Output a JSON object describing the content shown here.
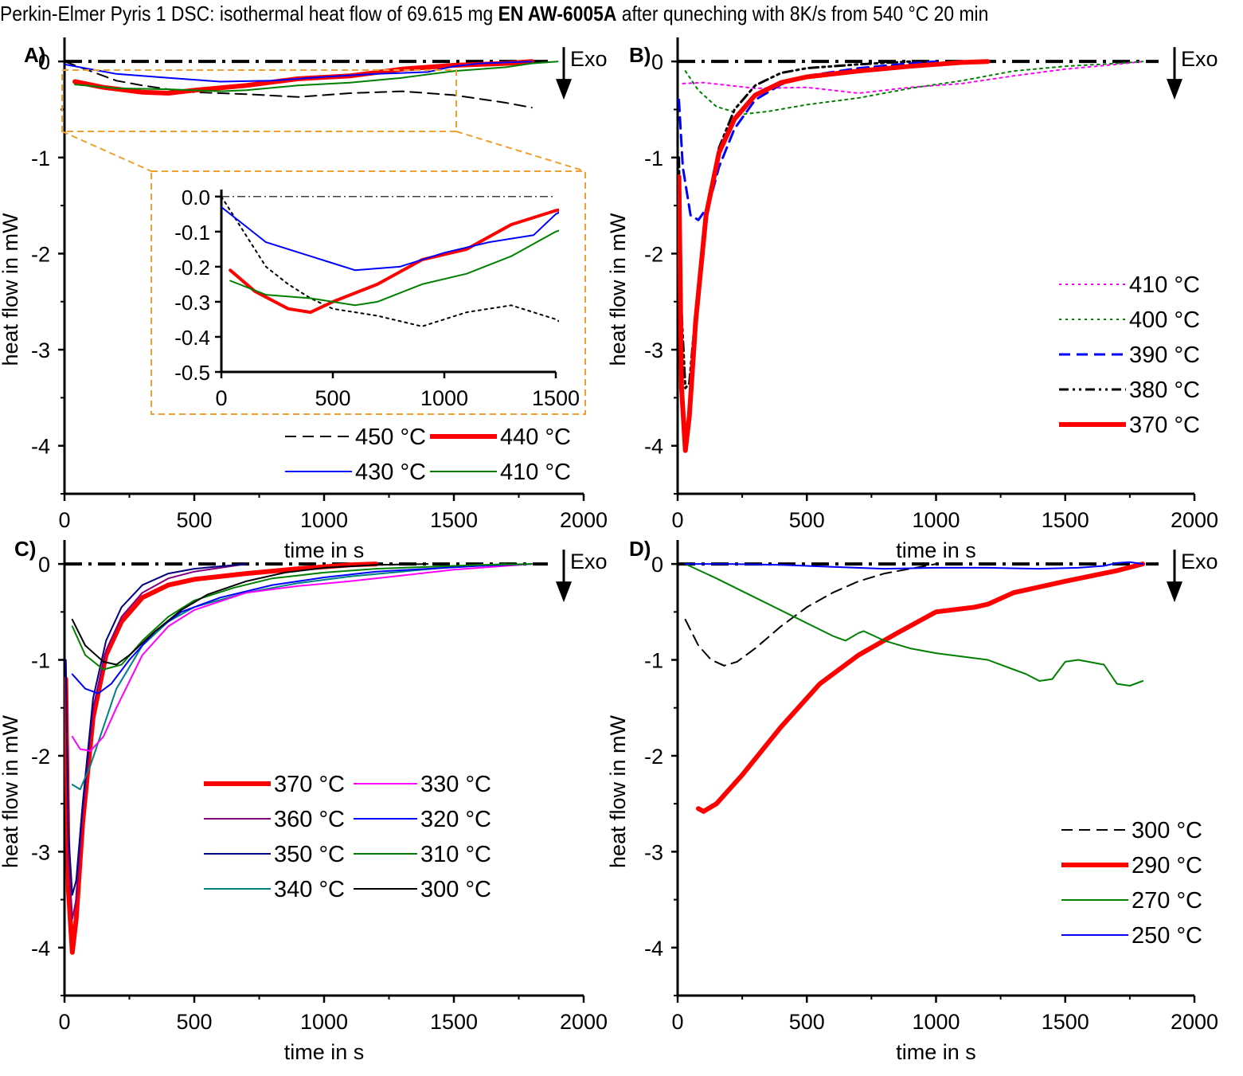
{
  "title": {
    "prefix": "Perkin-Elmer Pyris 1 DSC: isothermal heat flow of 69.615 mg ",
    "alloy": "EN AW-6005A",
    "suffix": " after quneching with 8K/s from 540 °C 20 min"
  },
  "common": {
    "xlabel": "time in s",
    "ylabel": "heat flow in mW",
    "exo_label": "Exo",
    "xticks": [
      0,
      500,
      1000,
      1500,
      2000
    ],
    "yticks": [
      0,
      -1,
      -2,
      -3,
      -4
    ],
    "xlim": [
      0,
      2000
    ],
    "ylim": [
      -4.5,
      0.25
    ]
  },
  "chart_data": [
    {
      "panel": "A)",
      "type": "line",
      "xlabel": "time in s",
      "ylabel": "heat flow in mW",
      "xlim": [
        0,
        2000
      ],
      "ylim": [
        -4.5,
        0.25
      ],
      "zero_line": true,
      "exo_arrow": true,
      "series": [
        {
          "name": "450 °C",
          "color": "#000000",
          "dash": "dash",
          "width": 2,
          "x": [
            0,
            100,
            200,
            300,
            400,
            500,
            700,
            900,
            1100,
            1300,
            1500,
            1700,
            1800
          ],
          "y": [
            0,
            -0.1,
            -0.2,
            -0.25,
            -0.29,
            -0.32,
            -0.34,
            -0.37,
            -0.33,
            -0.31,
            -0.35,
            -0.43,
            -0.48
          ]
        },
        {
          "name": "440 °C",
          "color": "#ff0000",
          "dash": "solid",
          "width": 6,
          "x": [
            40,
            150,
            300,
            400,
            500,
            700,
            900,
            1100,
            1300,
            1500,
            1700,
            1800
          ],
          "y": [
            -0.21,
            -0.27,
            -0.32,
            -0.33,
            -0.3,
            -0.25,
            -0.18,
            -0.15,
            -0.08,
            -0.04,
            -0.02,
            0
          ]
        },
        {
          "name": "430 °C",
          "color": "#0000ff",
          "dash": "solid",
          "width": 2,
          "x": [
            0,
            100,
            200,
            400,
            500,
            600,
            800,
            1000,
            1200,
            1400,
            1500,
            1600,
            1800
          ],
          "y": [
            -0.03,
            -0.08,
            -0.13,
            -0.17,
            -0.19,
            -0.21,
            -0.2,
            -0.16,
            -0.13,
            -0.11,
            -0.05,
            -0.02,
            0
          ]
        },
        {
          "name": "410 °C",
          "color": "#008000",
          "dash": "solid",
          "width": 2,
          "x": [
            40,
            200,
            400,
            600,
            700,
            900,
            1100,
            1300,
            1500,
            1700,
            1800,
            1900
          ],
          "y": [
            -0.24,
            -0.28,
            -0.29,
            -0.31,
            -0.3,
            -0.25,
            -0.22,
            -0.17,
            -0.1,
            -0.06,
            -0.02,
            0
          ]
        }
      ],
      "inset": {
        "xlim": [
          0,
          1500
        ],
        "ylim": [
          -0.5,
          0.02
        ],
        "xticks": [
          0,
          500,
          1000,
          1500
        ],
        "yticks": [
          "0.0",
          "-0.1",
          "-0.2",
          "-0.3",
          "-0.4",
          "-0.5"
        ]
      },
      "legend": [
        "450 °C",
        "440 °C",
        "430 °C",
        "410 °C"
      ]
    },
    {
      "panel": "B)",
      "type": "line",
      "xlabel": "time in s",
      "ylabel": "heat flow in mW",
      "xlim": [
        0,
        2000
      ],
      "ylim": [
        -4.5,
        0.25
      ],
      "zero_line": true,
      "exo_arrow": true,
      "series": [
        {
          "name": "410 °C",
          "color": "#ff00ff",
          "dash": "dot",
          "width": 2,
          "x": [
            20,
            100,
            300,
            500,
            700,
            900,
            1100,
            1300,
            1500,
            1700,
            1800
          ],
          "y": [
            -0.23,
            -0.22,
            -0.28,
            -0.27,
            -0.33,
            -0.27,
            -0.23,
            -0.15,
            -0.08,
            -0.03,
            0
          ]
        },
        {
          "name": "400 °C",
          "color": "#008000",
          "dash": "dot",
          "width": 2,
          "x": [
            30,
            80,
            150,
            250,
            350,
            500,
            700,
            900,
            1100,
            1300,
            1500,
            1700,
            1800
          ],
          "y": [
            -0.1,
            -0.3,
            -0.47,
            -0.55,
            -0.52,
            -0.45,
            -0.38,
            -0.28,
            -0.2,
            -0.1,
            -0.05,
            -0.02,
            0
          ]
        },
        {
          "name": "390 °C",
          "color": "#0000ff",
          "dash": "dash",
          "width": 3,
          "x": [
            5,
            20,
            50,
            80,
            120,
            160,
            220,
            300,
            400,
            500,
            700,
            900,
            1000
          ],
          "y": [
            -0.4,
            -1.1,
            -1.6,
            -1.65,
            -1.5,
            -1.1,
            -0.7,
            -0.4,
            -0.24,
            -0.15,
            -0.07,
            -0.02,
            0
          ]
        },
        {
          "name": "380 °C",
          "color": "#000000",
          "dash": "dashdotdot",
          "width": 3,
          "x": [
            5,
            15,
            30,
            45,
            70,
            110,
            160,
            220,
            300,
            400,
            500,
            700,
            900
          ],
          "y": [
            -1.0,
            -2.6,
            -3.4,
            -3.35,
            -2.6,
            -1.6,
            -0.9,
            -0.5,
            -0.25,
            -0.12,
            -0.07,
            -0.03,
            0
          ]
        },
        {
          "name": "370 °C",
          "color": "#ff0000",
          "dash": "solid",
          "width": 6,
          "x": [
            5,
            15,
            30,
            45,
            70,
            110,
            160,
            220,
            300,
            400,
            500,
            700,
            900,
            1100,
            1200
          ],
          "y": [
            -1.2,
            -3.4,
            -4.05,
            -3.7,
            -2.7,
            -1.6,
            -0.95,
            -0.6,
            -0.35,
            -0.22,
            -0.16,
            -0.1,
            -0.05,
            -0.01,
            0
          ]
        }
      ],
      "legend": [
        "410 °C",
        "400 °C",
        "390 °C",
        "380 °C",
        "370 °C"
      ]
    },
    {
      "panel": "C)",
      "type": "line",
      "xlabel": "time in s",
      "ylabel": "heat flow in mW",
      "xlim": [
        0,
        2000
      ],
      "ylim": [
        -4.5,
        0.25
      ],
      "zero_line": true,
      "exo_arrow": true,
      "series": [
        {
          "name": "370 °C",
          "color": "#ff0000",
          "dash": "solid",
          "width": 6,
          "x": [
            5,
            15,
            30,
            45,
            70,
            110,
            160,
            220,
            300,
            400,
            500,
            700,
            900,
            1100,
            1200
          ],
          "y": [
            -1.2,
            -3.4,
            -4.05,
            -3.7,
            -2.7,
            -1.6,
            -0.95,
            -0.6,
            -0.35,
            -0.22,
            -0.16,
            -0.1,
            -0.05,
            -0.01,
            0
          ]
        },
        {
          "name": "360 °C",
          "color": "#800080",
          "dash": "solid",
          "width": 2,
          "x": [
            5,
            15,
            30,
            45,
            70,
            110,
            160,
            220,
            300,
            400,
            500,
            700
          ],
          "y": [
            -1.0,
            -3.0,
            -3.7,
            -3.5,
            -2.6,
            -1.5,
            -0.9,
            -0.55,
            -0.3,
            -0.15,
            -0.08,
            0
          ]
        },
        {
          "name": "350 °C",
          "color": "#000080",
          "dash": "solid",
          "width": 2,
          "x": [
            5,
            15,
            30,
            45,
            70,
            110,
            160,
            220,
            300,
            400,
            500,
            700
          ],
          "y": [
            -1.0,
            -2.8,
            -3.45,
            -3.3,
            -2.5,
            -1.4,
            -0.8,
            -0.45,
            -0.22,
            -0.1,
            -0.05,
            0
          ]
        },
        {
          "name": "340 °C",
          "color": "#008080",
          "dash": "solid",
          "width": 2,
          "x": [
            30,
            60,
            100,
            150,
            200,
            300,
            400,
            500,
            700,
            900,
            1100,
            1300,
            1500,
            1700
          ],
          "y": [
            -2.3,
            -2.35,
            -2.1,
            -1.7,
            -1.3,
            -0.85,
            -0.6,
            -0.45,
            -0.3,
            -0.2,
            -0.13,
            -0.08,
            -0.03,
            0
          ]
        },
        {
          "name": "330 °C",
          "color": "#ff00ff",
          "dash": "solid",
          "width": 2,
          "x": [
            30,
            60,
            100,
            150,
            200,
            300,
            400,
            500,
            700,
            900,
            1100,
            1300,
            1500,
            1700,
            1800
          ],
          "y": [
            -1.8,
            -1.93,
            -1.95,
            -1.8,
            -1.5,
            -0.95,
            -0.65,
            -0.48,
            -0.3,
            -0.23,
            -0.18,
            -0.12,
            -0.06,
            -0.02,
            0
          ]
        },
        {
          "name": "320 °C",
          "color": "#0000ff",
          "dash": "solid",
          "width": 2,
          "x": [
            30,
            80,
            130,
            180,
            250,
            350,
            450,
            600,
            800,
            1000,
            1200,
            1400,
            1600,
            1800
          ],
          "y": [
            -1.15,
            -1.3,
            -1.35,
            -1.25,
            -1.0,
            -0.7,
            -0.5,
            -0.35,
            -0.22,
            -0.14,
            -0.08,
            -0.05,
            -0.02,
            0
          ]
        },
        {
          "name": "310 °C",
          "color": "#008000",
          "dash": "solid",
          "width": 2,
          "x": [
            30,
            80,
            150,
            220,
            300,
            400,
            500,
            650,
            800,
            1000,
            1200,
            1400,
            1600,
            1800
          ],
          "y": [
            -0.65,
            -0.95,
            -1.1,
            -1.05,
            -0.8,
            -0.55,
            -0.38,
            -0.25,
            -0.15,
            -0.09,
            -0.05,
            -0.03,
            -0.01,
            0
          ]
        },
        {
          "name": "300 °C",
          "color": "#000000",
          "dash": "solid",
          "width": 2,
          "x": [
            30,
            80,
            150,
            200,
            250,
            350,
            450,
            550,
            700,
            850,
            1000,
            1200,
            1400
          ],
          "y": [
            -0.58,
            -0.85,
            -1.02,
            -1.05,
            -0.95,
            -0.7,
            -0.48,
            -0.32,
            -0.18,
            -0.09,
            -0.04,
            -0.01,
            0
          ]
        }
      ],
      "legend": [
        "370 °C",
        "330 °C",
        "360 °C",
        "320 °C",
        "350 °C",
        "310 °C",
        "340 °C",
        "300 °C"
      ]
    },
    {
      "panel": "D)",
      "type": "line",
      "xlabel": "time in s",
      "ylabel": "heat flow in mW",
      "xlim": [
        0,
        2000
      ],
      "ylim": [
        -4.5,
        0.25
      ],
      "zero_line": true,
      "exo_arrow": true,
      "series": [
        {
          "name": "300 °C",
          "color": "#000000",
          "dash": "dash",
          "width": 2,
          "x": [
            30,
            80,
            130,
            180,
            230,
            300,
            400,
            500,
            600,
            700,
            800,
            900,
            1000
          ],
          "y": [
            -0.58,
            -0.85,
            -1.0,
            -1.06,
            -1.02,
            -0.88,
            -0.65,
            -0.45,
            -0.3,
            -0.18,
            -0.1,
            -0.05,
            0
          ]
        },
        {
          "name": "290 °C",
          "color": "#ff0000",
          "dash": "solid",
          "width": 6,
          "x": [
            80,
            100,
            150,
            250,
            400,
            550,
            700,
            850,
            1000,
            1150,
            1200,
            1300,
            1500,
            1700,
            1800
          ],
          "y": [
            -2.55,
            -2.58,
            -2.5,
            -2.2,
            -1.7,
            -1.25,
            -0.95,
            -0.72,
            -0.5,
            -0.45,
            -0.42,
            -0.3,
            -0.18,
            -0.07,
            0
          ]
        },
        {
          "name": "270 °C",
          "color": "#008000",
          "dash": "solid",
          "width": 2,
          "x": [
            30,
            150,
            300,
            450,
            600,
            650,
            700,
            720,
            800,
            900,
            1000,
            1200,
            1350,
            1400,
            1450,
            1500,
            1550,
            1650,
            1700,
            1750,
            1800
          ],
          "y": [
            0,
            -0.15,
            -0.35,
            -0.55,
            -0.75,
            -0.8,
            -0.72,
            -0.7,
            -0.8,
            -0.88,
            -0.93,
            -1.0,
            -1.15,
            -1.22,
            -1.2,
            -1.02,
            -1.0,
            -1.05,
            -1.25,
            -1.27,
            -1.22
          ]
        },
        {
          "name": "250 °C",
          "color": "#0000ff",
          "dash": "solid",
          "width": 2,
          "x": [
            30,
            200,
            400,
            600,
            800,
            1000,
            1200,
            1400,
            1550,
            1650,
            1700,
            1750,
            1800
          ],
          "y": [
            0,
            0,
            -0.01,
            -0.03,
            -0.05,
            -0.04,
            -0.04,
            -0.05,
            -0.04,
            -0.02,
            0.01,
            0.02,
            0
          ]
        }
      ],
      "legend": [
        "300 °C",
        "290 °C",
        "270 °C",
        "250 °C"
      ]
    }
  ]
}
